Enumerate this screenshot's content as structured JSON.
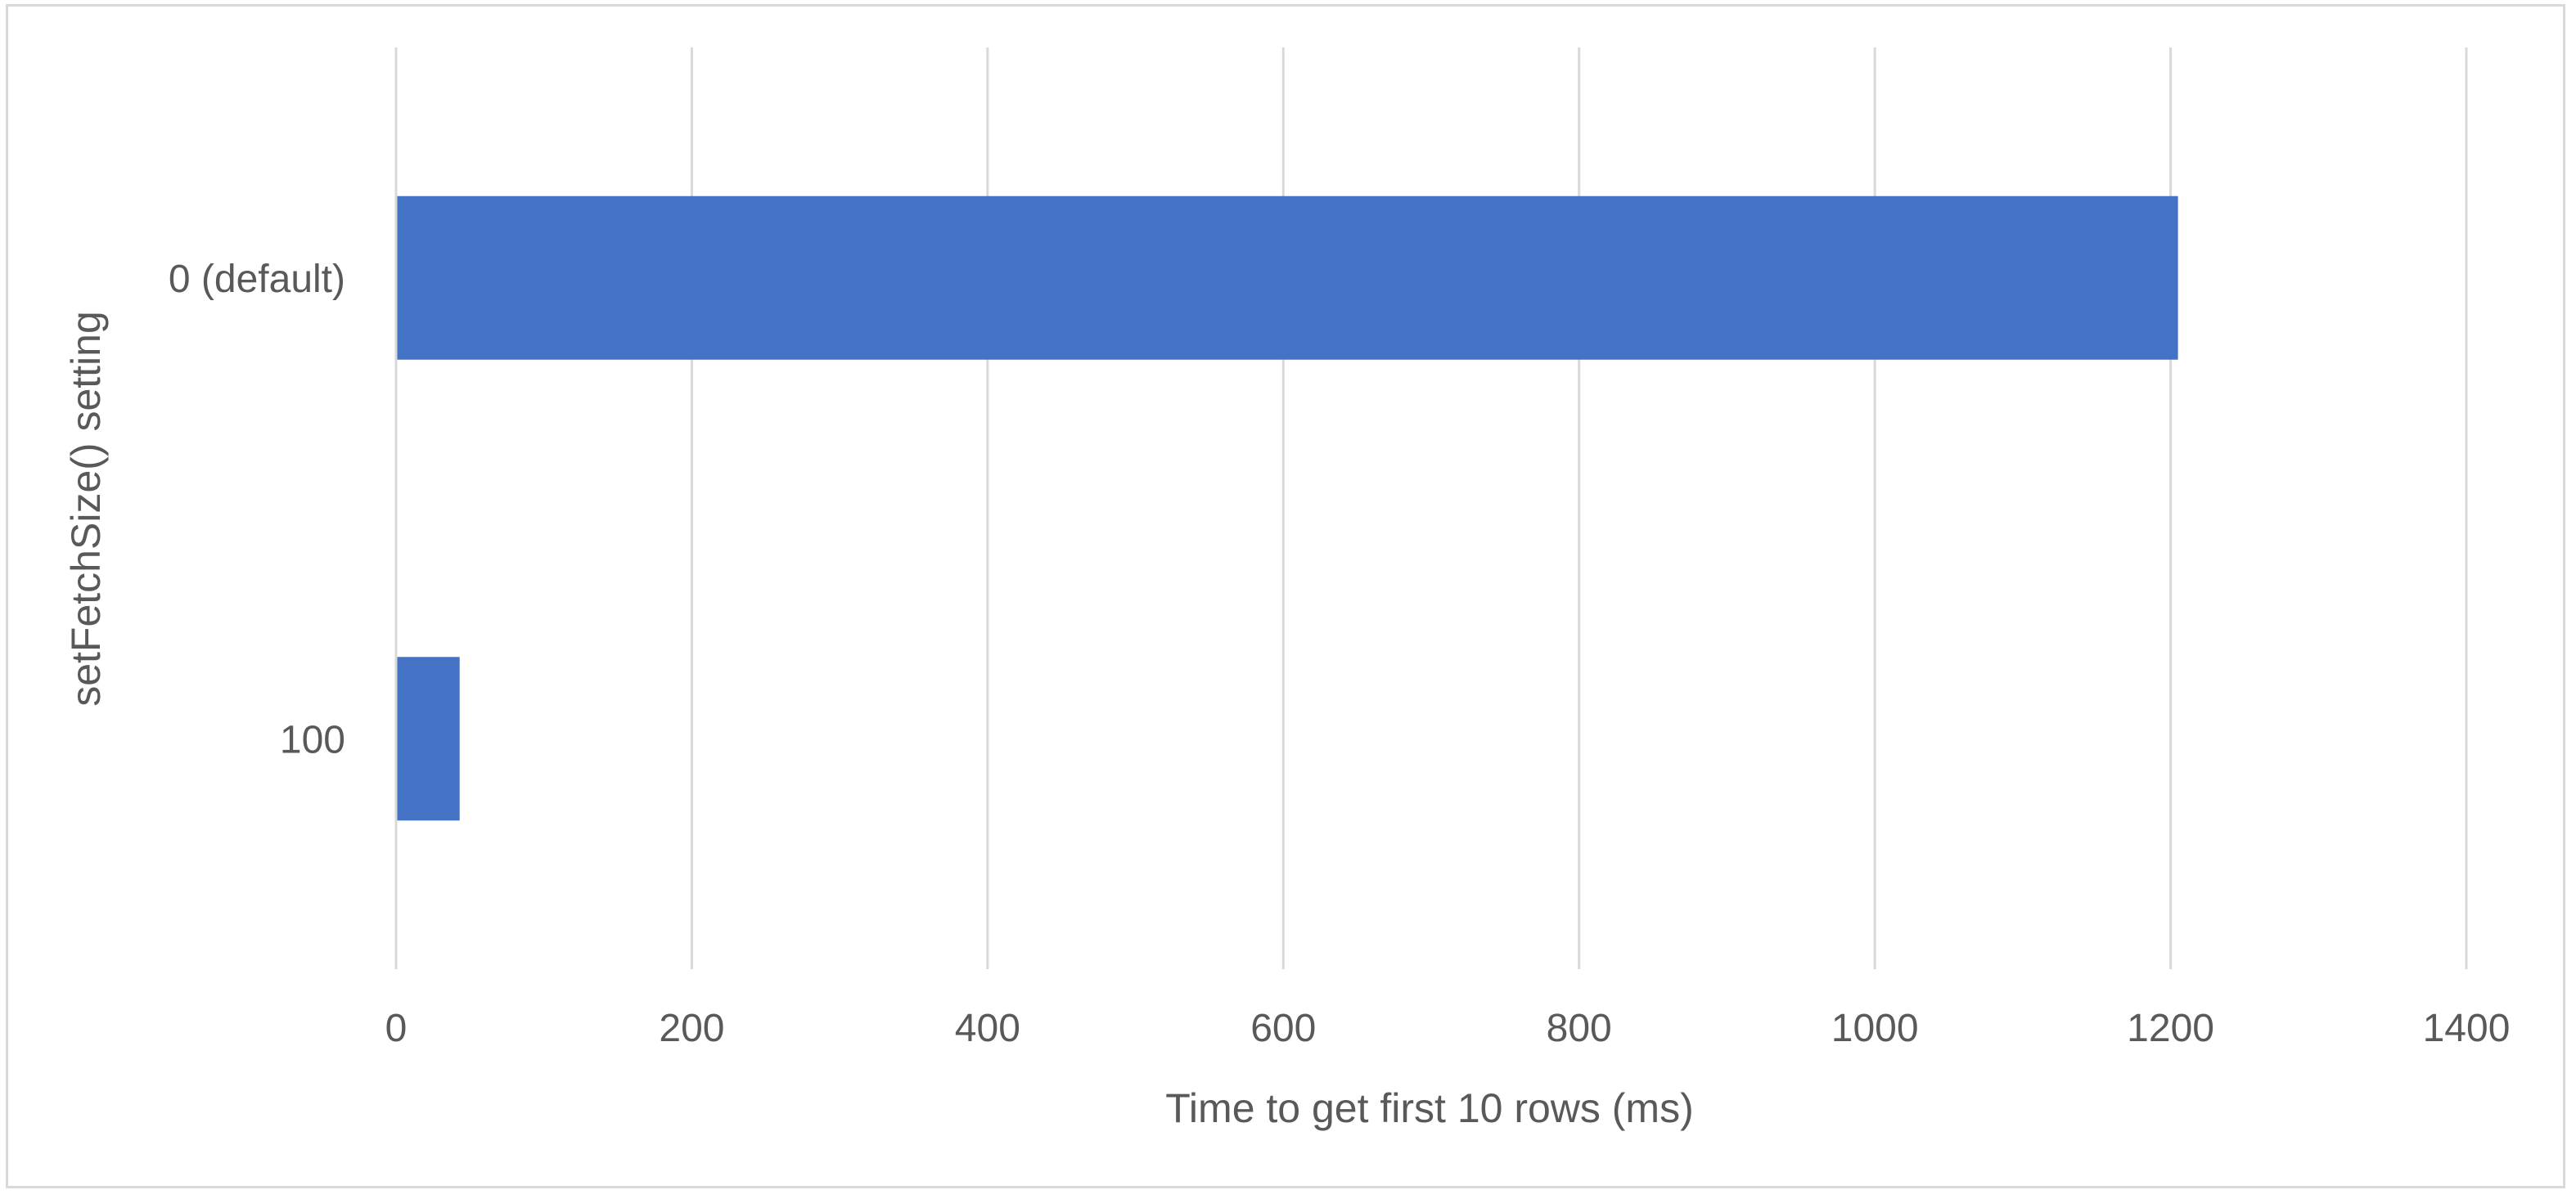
{
  "chart_data": {
    "type": "bar",
    "orientation": "horizontal",
    "categories": [
      "0 (default)",
      "100"
    ],
    "values": [
      1205,
      43
    ],
    "xlabel": "Time to get first 10 rows (ms)",
    "ylabel": "setFetchSize() setting",
    "xlim": [
      0,
      1400
    ],
    "xticks": [
      "0",
      "200",
      "400",
      "600",
      "800",
      "1000",
      "1200",
      "1400"
    ],
    "grid": true,
    "legend": "none",
    "bar_color": "#4472C4"
  }
}
